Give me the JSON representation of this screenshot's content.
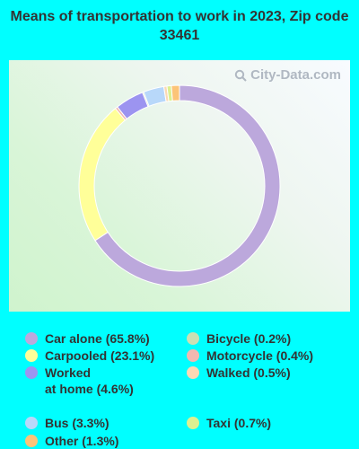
{
  "title": "Means of transportation to work in 2023, Zip code 33461",
  "watermark": "City-Data.com",
  "chart_data": {
    "type": "pie",
    "donut": true,
    "slices": [
      {
        "label": "Car alone (65.8%)",
        "value": 65.8,
        "color": "#bca8dc"
      },
      {
        "label": "Carpooled (23.1%)",
        "value": 23.1,
        "color": "#ffff99"
      },
      {
        "label": "Motorcycle (0.4%)",
        "value": 0.4,
        "color": "#f2b8b0"
      },
      {
        "label": "Worked\nat home (4.6%)",
        "value": 4.6,
        "color": "#9c94f0"
      },
      {
        "label": "Bicycle (0.2%)",
        "value": 0.2,
        "color": "#cce0b4"
      },
      {
        "label": "Bus (3.3%)",
        "value": 3.3,
        "color": "#b8d8fa"
      },
      {
        "label": "Walked (0.5%)",
        "value": 0.5,
        "color": "#fbd8b4"
      },
      {
        "label": "Taxi (0.7%)",
        "value": 0.7,
        "color": "#dcf090"
      },
      {
        "label": "Other (1.3%)",
        "value": 1.3,
        "color": "#fcc478"
      }
    ],
    "legend_order": [
      "Car alone (65.8%)",
      "Bicycle (0.2%)",
      "Carpooled (23.1%)",
      "Motorcycle (0.4%)",
      "Worked\nat home (4.6%)",
      "Walked (0.5%)",
      "Bus (3.3%)",
      "Taxi (0.7%)",
      "Other (1.3%)"
    ]
  }
}
